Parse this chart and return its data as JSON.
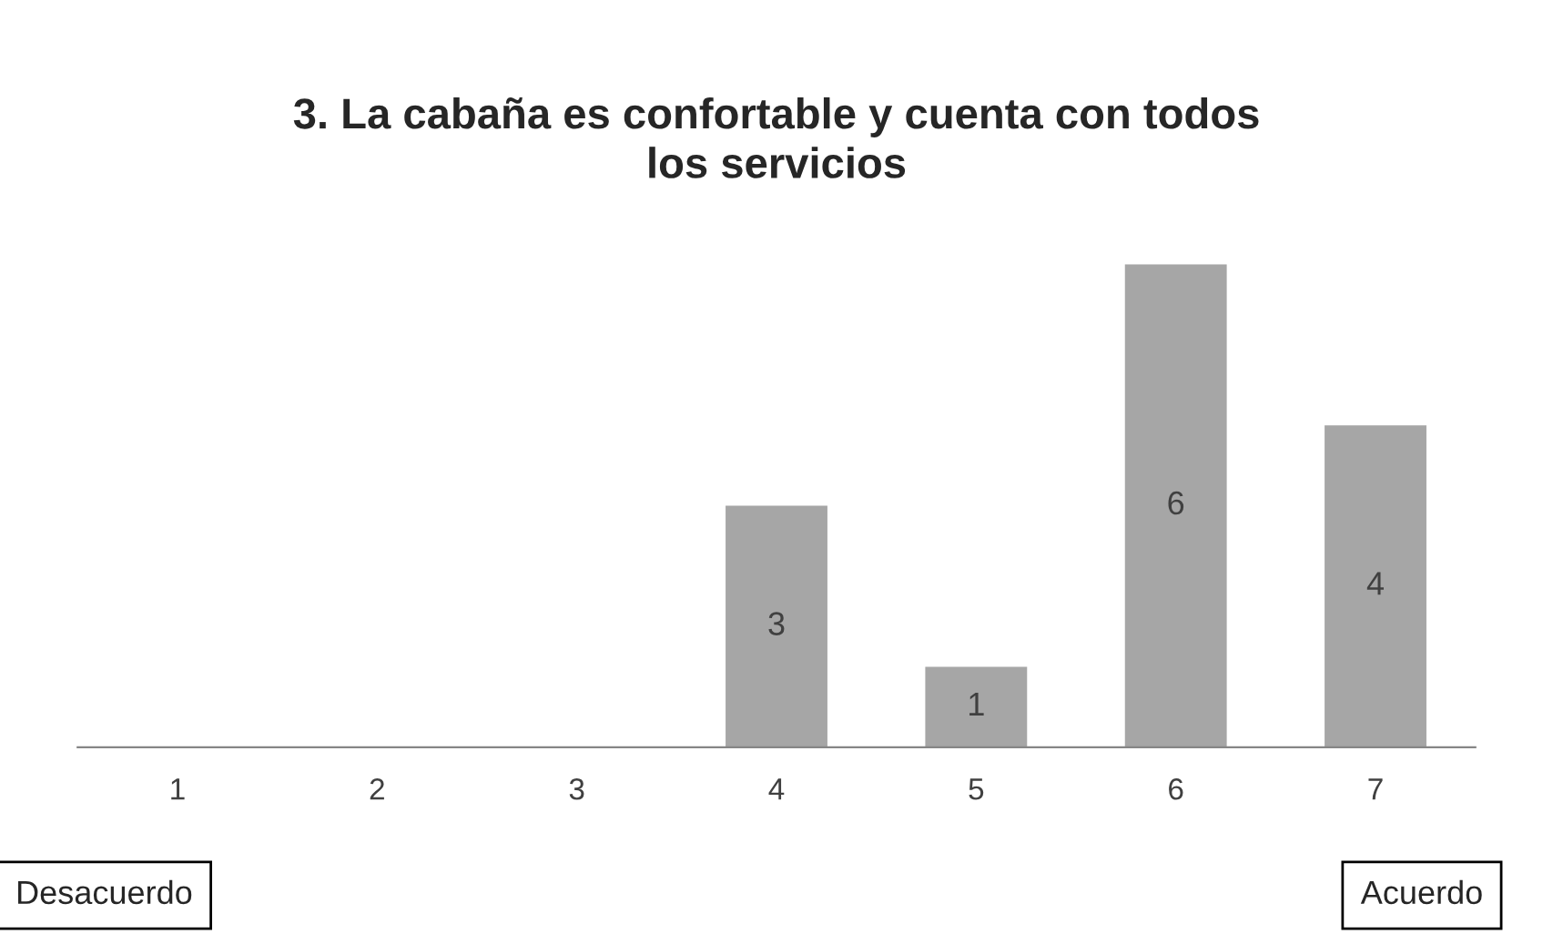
{
  "chart_data": {
    "type": "bar",
    "title": "3. La cabaña es confortable y cuenta con todos\nlos servicios",
    "categories": [
      "1",
      "2",
      "3",
      "4",
      "5",
      "6",
      "7"
    ],
    "values": [
      0,
      0,
      0,
      3,
      1,
      6,
      4
    ],
    "value_labels": [
      null,
      null,
      null,
      "3",
      "1",
      "6",
      "4"
    ],
    "color": "#a6a6a6",
    "annotations": [
      "Desacuerdo",
      "Acuerdo"
    ]
  }
}
